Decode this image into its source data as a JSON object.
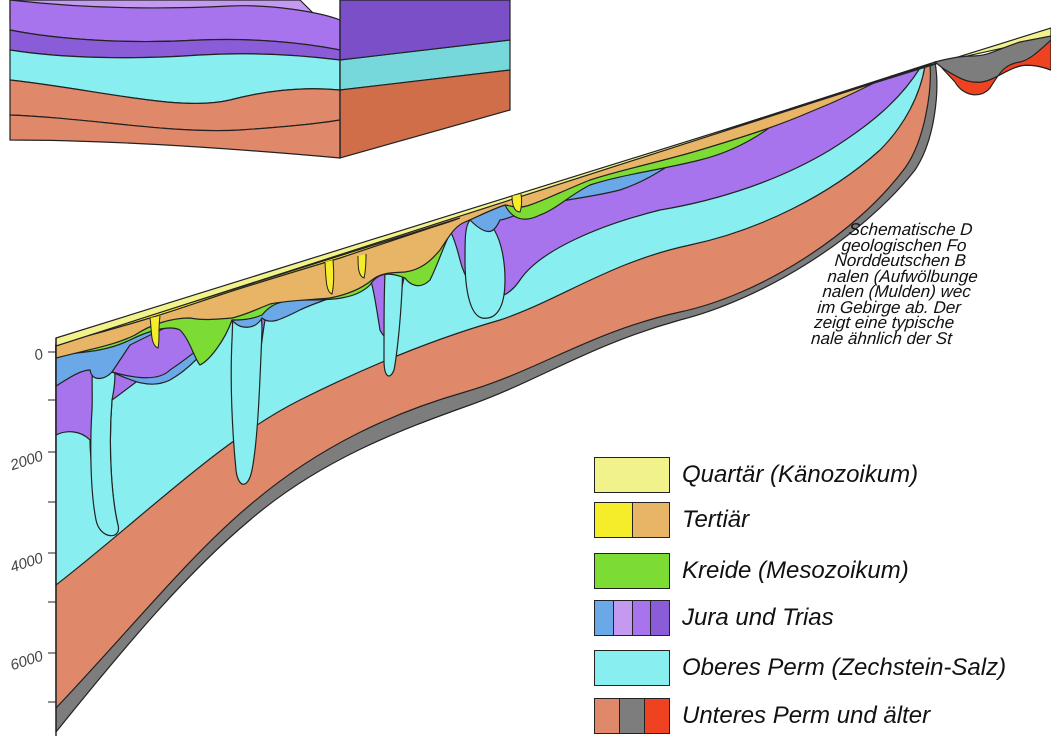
{
  "caption": {
    "lines": [
      "Schematische D",
      "geologischen Fo",
      "Norddeutschen B",
      "nalen (Aufwölbunge",
      "nalen (Mulden) wec",
      "im Gebirge ab. Der",
      "zeigt eine typische",
      "nale ähnlich der St"
    ]
  },
  "depth_axis": {
    "labels": [
      "0",
      "2000",
      "4000",
      "6000"
    ]
  },
  "legend": [
    {
      "label": "Quartär (Känozoikum)",
      "colors": [
        "#f2f28c"
      ]
    },
    {
      "label": "Tertiär",
      "colors": [
        "#f5ec2a",
        "#e8b465"
      ]
    },
    {
      "label": "Kreide (Mesozoikum)",
      "colors": [
        "#7cdc34"
      ]
    },
    {
      "label": "Jura und Trias",
      "colors": [
        "#6aa8e8",
        "#c49af0",
        "#a874ee",
        "#8a5cd8"
      ]
    },
    {
      "label": "Oberes Perm (Zechstein-Salz)",
      "colors": [
        "#88eef0"
      ]
    },
    {
      "label": "Unteres Perm und älter",
      "colors": [
        "#e0896a",
        "#7d7d7d",
        "#ee4220"
      ]
    }
  ],
  "colors": {
    "quartaer": "#f2f28c",
    "tertiaer_yellow": "#f5ec2a",
    "tertiaer_tan": "#e8b465",
    "kreide": "#7cdc34",
    "jura_blue": "#6aa8e8",
    "trias_purple": "#a874ee",
    "trias_light": "#c49af0",
    "trias_dark": "#8a5cd8",
    "zechstein": "#88eef0",
    "unteres_perm": "#e0896a",
    "basement": "#7d7d7d",
    "red": "#ee4220"
  }
}
